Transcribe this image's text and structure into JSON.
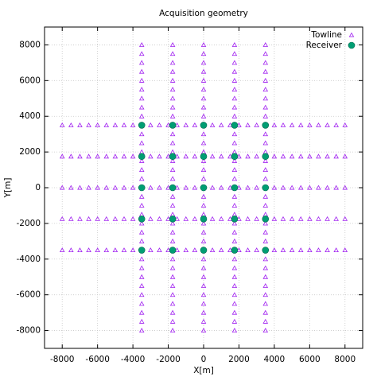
{
  "chart_data": {
    "type": "scatter",
    "title": "Acquisition geometry",
    "x_label": "X[m]",
    "y_label": "Y[m]",
    "xlim": [
      -9000,
      9000
    ],
    "ylim": [
      -9000,
      9000
    ],
    "xticks": [
      -8000,
      -6000,
      -4000,
      -2000,
      0,
      2000,
      4000,
      6000,
      8000
    ],
    "yticks": [
      -8000,
      -6000,
      -4000,
      -2000,
      0,
      2000,
      4000,
      6000,
      8000
    ],
    "grid": true,
    "legend": "upper right",
    "series": [
      {
        "name": "Towline",
        "color": "#a020f0",
        "marker": "triangle",
        "x": [
          -3500,
          -3500,
          -3500,
          -3500,
          -3500,
          -3500,
          -3500,
          -3500,
          -3500,
          -3500,
          -3500,
          -3500,
          -3500,
          -3500,
          -3500,
          -3500,
          -3500,
          -3500,
          -3500,
          -3500,
          -3500,
          -3500,
          -3500,
          -3500,
          -3500,
          -3500,
          -3500,
          -3500,
          -3500,
          -3500,
          -3500,
          -3500,
          -3500,
          -1750,
          -1750,
          -1750,
          -1750,
          -1750,
          -1750,
          -1750,
          -1750,
          -1750,
          -1750,
          -1750,
          -1750,
          -1750,
          -1750,
          -1750,
          -1750,
          -1750,
          -1750,
          -1750,
          -1750,
          -1750,
          -1750,
          -1750,
          -1750,
          -1750,
          -1750,
          -1750,
          -1750,
          -1750,
          -1750,
          -1750,
          -1750,
          -1750,
          0,
          0,
          0,
          0,
          0,
          0,
          0,
          0,
          0,
          0,
          0,
          0,
          0,
          0,
          0,
          0,
          0,
          0,
          0,
          0,
          0,
          0,
          0,
          0,
          0,
          0,
          0,
          0,
          0,
          0,
          0,
          0,
          0,
          1750,
          1750,
          1750,
          1750,
          1750,
          1750,
          1750,
          1750,
          1750,
          1750,
          1750,
          1750,
          1750,
          1750,
          1750,
          1750,
          1750,
          1750,
          1750,
          1750,
          1750,
          1750,
          1750,
          1750,
          1750,
          1750,
          1750,
          1750,
          1750,
          1750,
          1750,
          1750,
          1750,
          3500,
          3500,
          3500,
          3500,
          3500,
          3500,
          3500,
          3500,
          3500,
          3500,
          3500,
          3500,
          3500,
          3500,
          3500,
          3500,
          3500,
          3500,
          3500,
          3500,
          3500,
          3500,
          3500,
          3500,
          3500,
          3500,
          3500,
          3500,
          3500,
          3500,
          3500,
          3500,
          3500,
          -8000,
          -7500,
          -7000,
          -6500,
          -6000,
          -5500,
          -5000,
          -4500,
          -4000,
          -3500,
          -3000,
          -2500,
          -2000,
          -1500,
          -1000,
          -500,
          0,
          500,
          1000,
          1500,
          2000,
          2500,
          3000,
          3500,
          4000,
          4500,
          5000,
          5500,
          6000,
          6500,
          7000,
          7500,
          8000,
          -8000,
          -7500,
          -7000,
          -6500,
          -6000,
          -5500,
          -5000,
          -4500,
          -4000,
          -3500,
          -3000,
          -2500,
          -2000,
          -1500,
          -1000,
          -500,
          0,
          500,
          1000,
          1500,
          2000,
          2500,
          3000,
          3500,
          4000,
          4500,
          5000,
          5500,
          6000,
          6500,
          7000,
          7500,
          8000,
          -8000,
          -7500,
          -7000,
          -6500,
          -6000,
          -5500,
          -5000,
          -4500,
          -4000,
          -3500,
          -3000,
          -2500,
          -2000,
          -1500,
          -1000,
          -500,
          0,
          500,
          1000,
          1500,
          2000,
          2500,
          3000,
          3500,
          4000,
          4500,
          5000,
          5500,
          6000,
          6500,
          7000,
          7500,
          8000,
          -8000,
          -7500,
          -7000,
          -6500,
          -6000,
          -5500,
          -5000,
          -4500,
          -4000,
          -3500,
          -3000,
          -2500,
          -2000,
          -1500,
          -1000,
          -500,
          0,
          500,
          1000,
          1500,
          2000,
          2500,
          3000,
          3500,
          4000,
          4500,
          5000,
          5500,
          6000,
          6500,
          7000,
          7500,
          8000,
          -8000,
          -7500,
          -7000,
          -6500,
          -6000,
          -5500,
          -5000,
          -4500,
          -4000,
          -3500,
          -3000,
          -2500,
          -2000,
          -1500,
          -1000,
          -500,
          0,
          500,
          1000,
          1500,
          2000,
          2500,
          3000,
          3500,
          4000,
          4500,
          5000,
          5500,
          6000,
          6500,
          7000,
          7500,
          8000
        ],
        "y": [
          -8000,
          -7500,
          -7000,
          -6500,
          -6000,
          -5500,
          -5000,
          -4500,
          -4000,
          -3500,
          -3000,
          -2500,
          -2000,
          -1500,
          -1000,
          -500,
          0,
          500,
          1000,
          1500,
          2000,
          2500,
          3000,
          3500,
          4000,
          4500,
          5000,
          5500,
          6000,
          6500,
          7000,
          7500,
          8000,
          -8000,
          -7500,
          -7000,
          -6500,
          -6000,
          -5500,
          -5000,
          -4500,
          -4000,
          -3500,
          -3000,
          -2500,
          -2000,
          -1500,
          -1000,
          -500,
          0,
          500,
          1000,
          1500,
          2000,
          2500,
          3000,
          3500,
          4000,
          4500,
          5000,
          5500,
          6000,
          6500,
          7000,
          7500,
          8000,
          -8000,
          -7500,
          -7000,
          -6500,
          -6000,
          -5500,
          -5000,
          -4500,
          -4000,
          -3500,
          -3000,
          -2500,
          -2000,
          -1500,
          -1000,
          -500,
          0,
          500,
          1000,
          1500,
          2000,
          2500,
          3000,
          3500,
          4000,
          4500,
          5000,
          5500,
          6000,
          6500,
          7000,
          7500,
          8000,
          -8000,
          -7500,
          -7000,
          -6500,
          -6000,
          -5500,
          -5000,
          -4500,
          -4000,
          -3500,
          -3000,
          -2500,
          -2000,
          -1500,
          -1000,
          -500,
          0,
          500,
          1000,
          1500,
          2000,
          2500,
          3000,
          3500,
          4000,
          4500,
          5000,
          5500,
          6000,
          6500,
          7000,
          7500,
          8000,
          -8000,
          -7500,
          -7000,
          -6500,
          -6000,
          -5500,
          -5000,
          -4500,
          -4000,
          -3500,
          -3000,
          -2500,
          -2000,
          -1500,
          -1000,
          -500,
          0,
          500,
          1000,
          1500,
          2000,
          2500,
          3000,
          3500,
          4000,
          4500,
          5000,
          5500,
          6000,
          6500,
          7000,
          7500,
          8000,
          -3500,
          -3500,
          -3500,
          -3500,
          -3500,
          -3500,
          -3500,
          -3500,
          -3500,
          -3500,
          -3500,
          -3500,
          -3500,
          -3500,
          -3500,
          -3500,
          -3500,
          -3500,
          -3500,
          -3500,
          -3500,
          -3500,
          -3500,
          -3500,
          -3500,
          -3500,
          -3500,
          -3500,
          -3500,
          -3500,
          -3500,
          -3500,
          -3500,
          -1750,
          -1750,
          -1750,
          -1750,
          -1750,
          -1750,
          -1750,
          -1750,
          -1750,
          -1750,
          -1750,
          -1750,
          -1750,
          -1750,
          -1750,
          -1750,
          -1750,
          -1750,
          -1750,
          -1750,
          -1750,
          -1750,
          -1750,
          -1750,
          -1750,
          -1750,
          -1750,
          -1750,
          -1750,
          -1750,
          -1750,
          -1750,
          -1750,
          0,
          0,
          0,
          0,
          0,
          0,
          0,
          0,
          0,
          0,
          0,
          0,
          0,
          0,
          0,
          0,
          0,
          0,
          0,
          0,
          0,
          0,
          0,
          0,
          0,
          0,
          0,
          0,
          0,
          0,
          0,
          0,
          0,
          1750,
          1750,
          1750,
          1750,
          1750,
          1750,
          1750,
          1750,
          1750,
          1750,
          1750,
          1750,
          1750,
          1750,
          1750,
          1750,
          1750,
          1750,
          1750,
          1750,
          1750,
          1750,
          1750,
          1750,
          1750,
          1750,
          1750,
          1750,
          1750,
          1750,
          1750,
          1750,
          1750,
          3500,
          3500,
          3500,
          3500,
          3500,
          3500,
          3500,
          3500,
          3500,
          3500,
          3500,
          3500,
          3500,
          3500,
          3500,
          3500,
          3500,
          3500,
          3500,
          3500,
          3500,
          3500,
          3500,
          3500,
          3500,
          3500,
          3500,
          3500,
          3500,
          3500,
          3500,
          3500,
          3500
        ]
      },
      {
        "name": "Receiver",
        "color": "#009e73",
        "marker": "circle",
        "x": [
          -3500,
          -1750,
          0,
          1750,
          3500,
          -3500,
          -1750,
          0,
          1750,
          3500,
          -3500,
          -1750,
          0,
          1750,
          3500,
          -3500,
          -1750,
          0,
          1750,
          3500,
          -3500,
          -1750,
          0,
          1750,
          3500
        ],
        "y": [
          -3500,
          -3500,
          -3500,
          -3500,
          -3500,
          -1750,
          -1750,
          -1750,
          -1750,
          -1750,
          0,
          0,
          0,
          0,
          0,
          1750,
          1750,
          1750,
          1750,
          1750,
          3500,
          3500,
          3500,
          3500,
          3500
        ]
      }
    ]
  }
}
